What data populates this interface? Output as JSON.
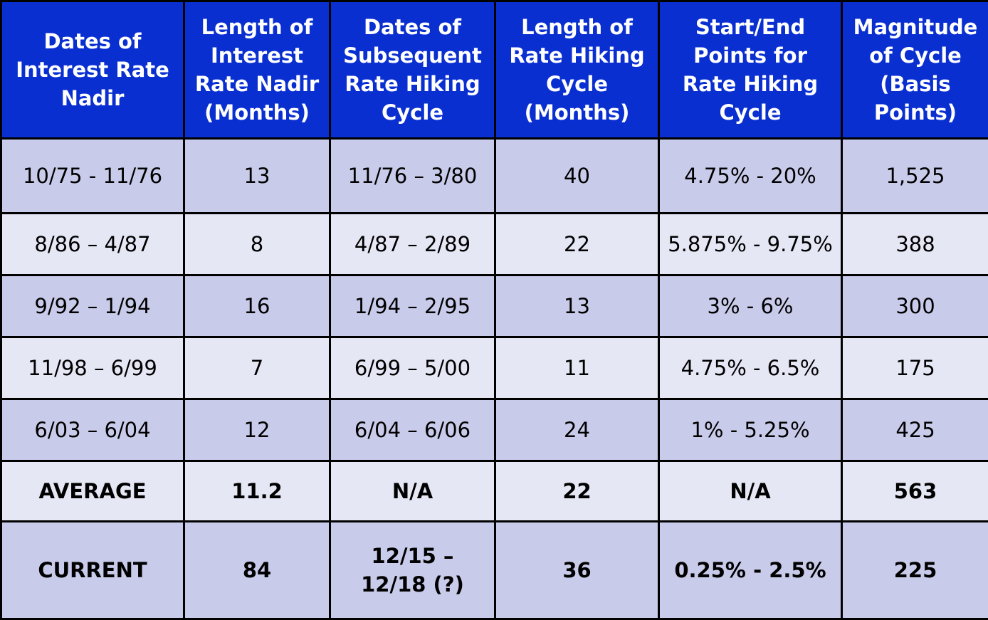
{
  "chart_data": {
    "type": "table",
    "columns": [
      "Dates of\nInterest Rate\nNadir",
      "Length of\nInterest\nRate Nadir\n(Months)",
      "Dates of\nSubsequent\nRate Hiking\nCycle",
      "Length of\nRate Hiking\nCycle\n(Months)",
      "Start/End\nPoints for\nRate Hiking\nCycle",
      "Magnitude\nof Cycle\n(Basis\nPoints)"
    ],
    "rows": [
      [
        "10/75 - 11/76",
        "13",
        "11/76 – 3/80",
        "40",
        "4.75% - 20%",
        "1,525"
      ],
      [
        "8/86 – 4/87",
        "8",
        "4/87 – 2/89",
        "22",
        "5.875% - 9.75%",
        "388"
      ],
      [
        "9/92 – 1/94",
        "16",
        "1/94 – 2/95",
        "13",
        "3% - 6%",
        "300"
      ],
      [
        "11/98 – 6/99",
        "7",
        "6/99 – 5/00",
        "11",
        "4.75% - 6.5%",
        "175"
      ],
      [
        "6/03 – 6/04",
        "12",
        "6/04 – 6/06",
        "24",
        "1% - 5.25%",
        "425"
      ],
      [
        "AVERAGE",
        "11.2",
        "N/A",
        "22",
        "N/A",
        "563"
      ],
      [
        "CURRENT",
        "84",
        "12/15 –\n12/18 (?)",
        "36",
        "0.25% - 2.5%",
        "225"
      ]
    ],
    "colors": {
      "header_bg": "#0a2fd1",
      "header_text": "#ffffff",
      "row_odd_bg": "#c9cbea",
      "row_even_bg": "#e6e7f5",
      "border": "#000000"
    }
  }
}
